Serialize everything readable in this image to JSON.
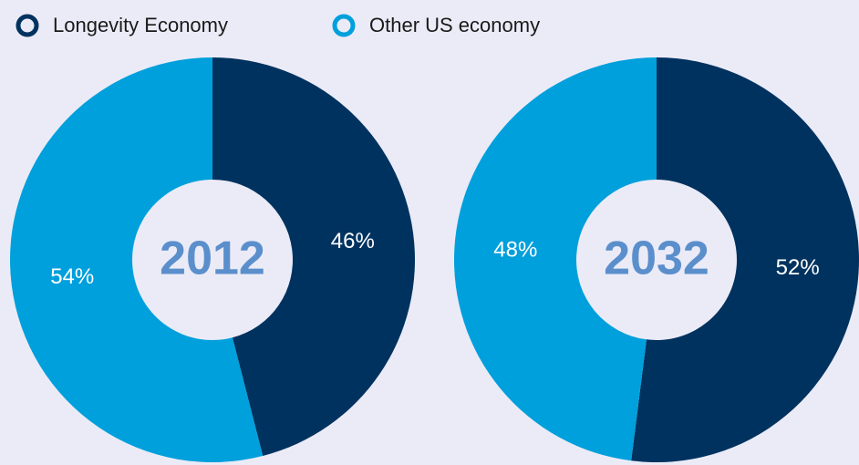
{
  "legend": {
    "categories": [
      "Longevity Economy",
      "Other US economy"
    ],
    "colors": [
      "#00325f",
      "#00a0dc"
    ]
  },
  "chart_data": [
    {
      "type": "pie",
      "title": "2012",
      "values": [
        46,
        54
      ],
      "value_labels": [
        "46%",
        "54%"
      ],
      "colors": [
        "#00325f",
        "#00a0dc"
      ],
      "donut": true
    },
    {
      "type": "pie",
      "title": "2032",
      "values": [
        52,
        48
      ],
      "value_labels": [
        "52%",
        "48%"
      ],
      "colors": [
        "#00325f",
        "#00a0dc"
      ],
      "donut": true
    }
  ]
}
